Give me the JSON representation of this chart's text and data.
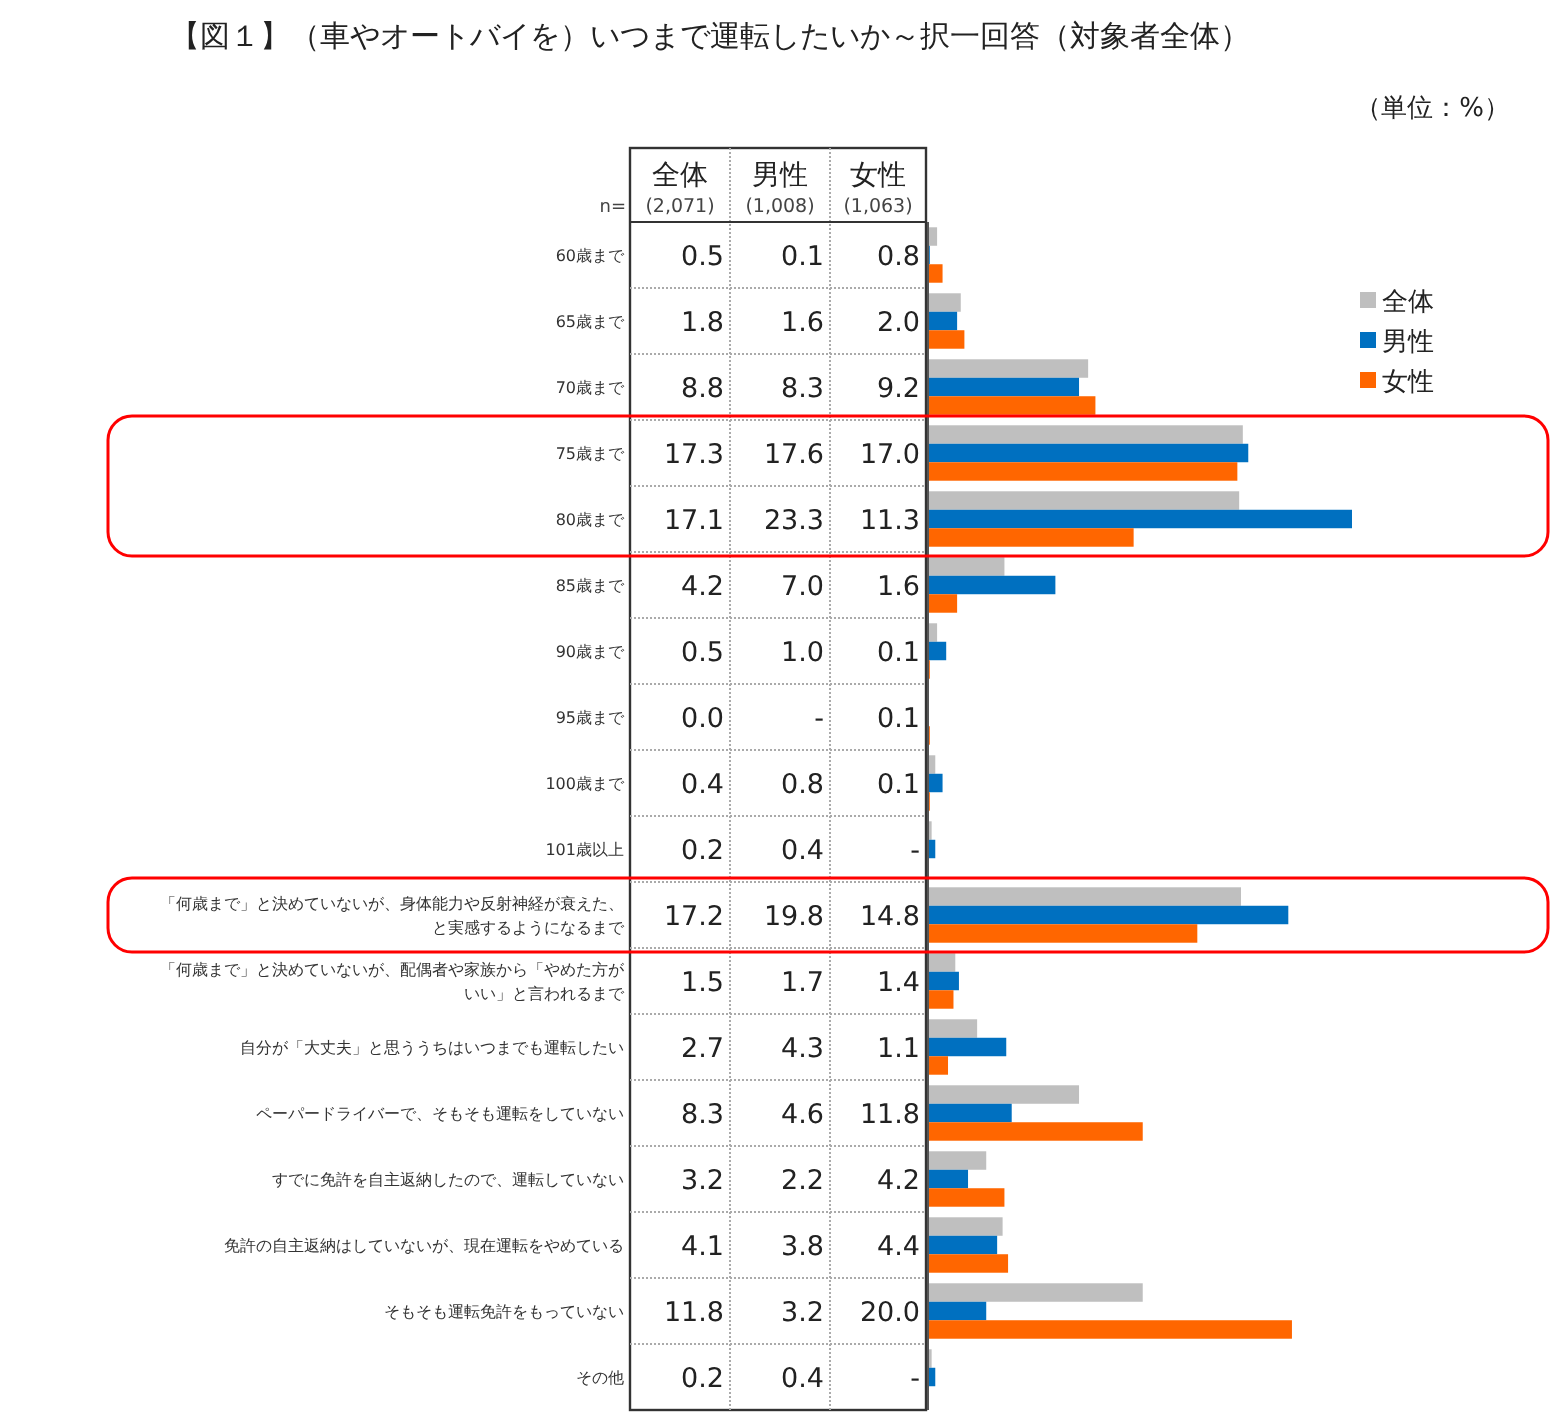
{
  "chart_data": {
    "type": "bar",
    "orientation": "horizontal",
    "title": "【図１】（車やオートバイを）いつまで運転したいか～択一回答（対象者全体）",
    "subtitle": "（単位：%）",
    "categories": [
      "60歳まで",
      "65歳まで",
      "70歳まで",
      "75歳まで",
      "80歳まで",
      "85歳まで",
      "90歳まで",
      "95歳まで",
      "100歳まで",
      "101歳以上",
      "「何歳まで」と決めていないが、身体能力や反射神経が衰えた、と実感するようになるまで",
      "「何歳まで」と決めていないが、配偶者や家族から「やめた方がいい」と言われるまで",
      "自分が「大丈夫」と思ううちはいつまでも運転したい",
      "ペーパードライバーで、そもそも運転をしていない",
      "すでに免許を自主返納したので、運転していない",
      "免許の自主返納はしていないが、現在運転をやめている",
      "そもそも運転免許をもっていない",
      "その他"
    ],
    "series": [
      {
        "name": "全体",
        "color": "#bfbfbf",
        "values": [
          0.5,
          1.8,
          8.8,
          17.3,
          17.1,
          4.2,
          0.5,
          0.0,
          0.4,
          0.2,
          17.2,
          1.5,
          2.7,
          8.3,
          3.2,
          4.1,
          11.8,
          0.2
        ],
        "value_labels": [
          "0.5",
          "1.8",
          "8.8",
          "17.3",
          "17.1",
          "4.2",
          "0.5",
          "0.0",
          "0.4",
          "0.2",
          "17.2",
          "1.5",
          "2.7",
          "8.3",
          "3.2",
          "4.1",
          "11.8",
          "0.2"
        ]
      },
      {
        "name": "男性",
        "color": "#0070c0",
        "values": [
          0.1,
          1.6,
          8.3,
          17.6,
          23.3,
          7.0,
          1.0,
          0,
          0.8,
          0.4,
          19.8,
          1.7,
          4.3,
          4.6,
          2.2,
          3.8,
          3.2,
          0.4
        ],
        "value_labels": [
          "0.1",
          "1.6",
          "8.3",
          "17.6",
          "23.3",
          "7.0",
          "1.0",
          "-",
          "0.8",
          "0.4",
          "19.8",
          "1.7",
          "4.3",
          "4.6",
          "2.2",
          "3.8",
          "3.2",
          "0.4"
        ]
      },
      {
        "name": "女性",
        "color": "#ff6600",
        "values": [
          0.8,
          2.0,
          9.2,
          17.0,
          11.3,
          1.6,
          0.1,
          0.1,
          0.1,
          0,
          14.8,
          1.4,
          1.1,
          11.8,
          4.2,
          4.4,
          20.0,
          0
        ],
        "value_labels": [
          "0.8",
          "2.0",
          "9.2",
          "17.0",
          "11.3",
          "1.6",
          "0.1",
          "0.1",
          "0.1",
          "-",
          "14.8",
          "1.4",
          "1.1",
          "11.8",
          "4.2",
          "4.4",
          "20.0",
          "-"
        ]
      }
    ],
    "annotations": [
      "n=",
      "(2,071)",
      "(1,008)",
      "(1,063)"
    ],
    "legend": "top right"
  }
}
